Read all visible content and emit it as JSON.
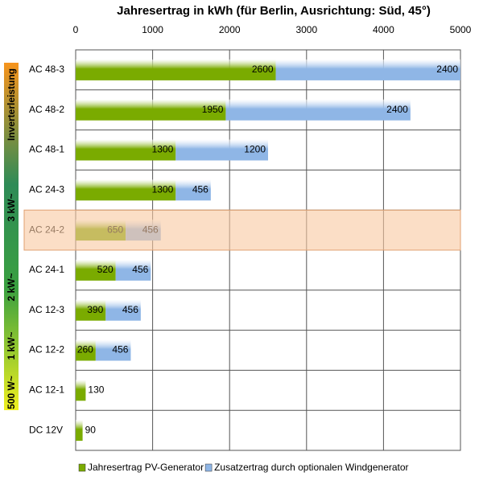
{
  "chart_data": {
    "type": "stacked-barh",
    "title": "Jahresertrag in kWh (für Berlin, Ausrichtung: Süd, 45°)",
    "categories": [
      "AC 48-3",
      "AC 48-2",
      "AC 48-1",
      "AC 24-3",
      "AC 24-2",
      "AC 24-1",
      "AC 12-3",
      "AC 12-2",
      "AC 12-1",
      "DC 12V"
    ],
    "series": [
      {
        "name": "Jahresertrag PV-Generator",
        "color": "#7aab00",
        "values": [
          2600,
          1950,
          1300,
          1300,
          650,
          520,
          390,
          260,
          130,
          90
        ]
      },
      {
        "name": "Zusatzertrag durch optionalen Windgenerator",
        "color": "#8fb6e6",
        "values": [
          2400,
          2400,
          1200,
          456,
          456,
          456,
          456,
          456,
          null,
          null
        ]
      }
    ],
    "xlim": [
      0,
      5000
    ],
    "xticks": [
      0,
      1000,
      2000,
      3000,
      4000,
      5000
    ],
    "grid": true,
    "highlight": "AC 24-2",
    "highlight_color": "#f8c8a0",
    "side_labels": [
      "Inverterleistung",
      "3 kW~",
      "2 kW~",
      "1 kW~",
      "500 W~"
    ]
  }
}
